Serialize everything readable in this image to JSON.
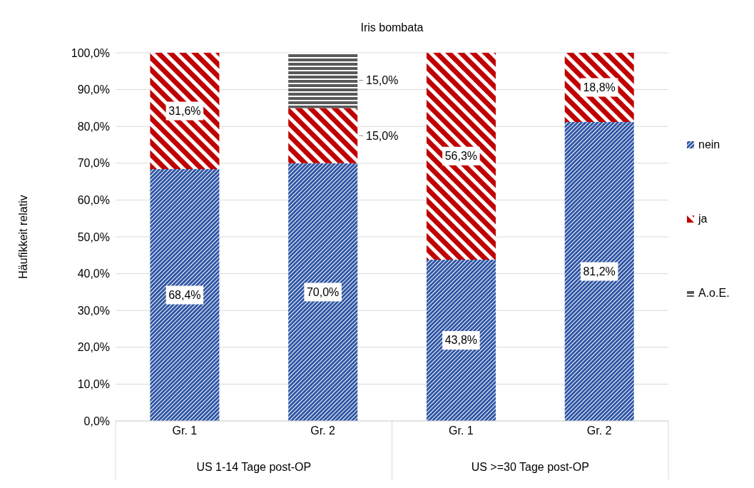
{
  "chart_data": {
    "type": "bar",
    "stacked": true,
    "title": "Iris bombata",
    "ylabel": "Häufikkeit relativ",
    "categories": [
      "Gr. 1",
      "Gr. 2",
      "Gr. 1",
      "Gr. 2"
    ],
    "annotations": [
      "US 1-14 Tage post-OP",
      "US >=30 Tage post-OP"
    ],
    "series": [
      {
        "name": "nein",
        "color": "#2f55a4",
        "values": [
          68.4,
          70.0,
          43.8,
          81.2
        ],
        "value_labels": [
          "68,4%",
          "70,0%",
          "43,8%",
          "81,2%"
        ]
      },
      {
        "name": "ja",
        "color": "#c00000",
        "values": [
          31.6,
          15.0,
          56.3,
          18.8
        ],
        "value_labels": [
          "31,6%",
          "15,0%",
          "56,3%",
          "18,8%"
        ]
      },
      {
        "name": "A.o.E.",
        "color": "#595959",
        "values": [
          null,
          15.0,
          null,
          null
        ],
        "value_labels": [
          null,
          "15,0%",
          null,
          null
        ]
      }
    ],
    "ylim": [
      0,
      100
    ],
    "yticks": [
      {
        "value": 0,
        "label": "0,0%"
      },
      {
        "value": 10,
        "label": "10,0%"
      },
      {
        "value": 20,
        "label": "20,0%"
      },
      {
        "value": 30,
        "label": "30,0%"
      },
      {
        "value": 40,
        "label": "40,0%"
      },
      {
        "value": 50,
        "label": "50,0%"
      },
      {
        "value": 60,
        "label": "60,0%"
      },
      {
        "value": 70,
        "label": "70,0%"
      },
      {
        "value": 80,
        "label": "80,0%"
      },
      {
        "value": 90,
        "label": "90,0%"
      },
      {
        "value": 100,
        "label": "100,0%"
      }
    ],
    "grid": "y",
    "legend": "right"
  }
}
